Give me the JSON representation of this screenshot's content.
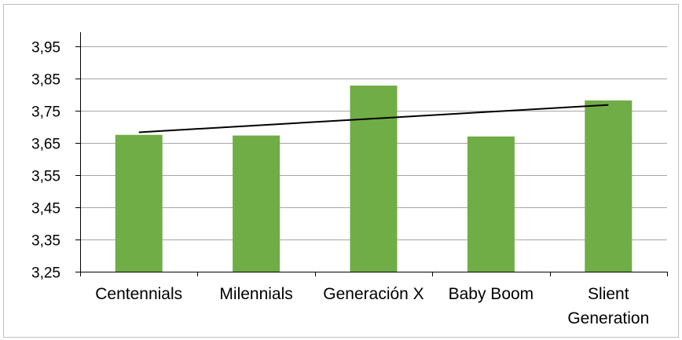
{
  "chart_data": {
    "type": "bar",
    "title": "",
    "xlabel": "",
    "ylabel": "",
    "categories": [
      [
        "Centennials"
      ],
      [
        "Milennials"
      ],
      [
        "Generación X"
      ],
      [
        "Baby Boom"
      ],
      [
        "Slient",
        "Generation"
      ]
    ],
    "values": [
      3.675,
      3.673,
      3.828,
      3.67,
      3.782
    ],
    "trendline": {
      "type": "linear",
      "start": 3.683,
      "end": 3.768
    },
    "ylim": [
      3.25,
      3.95
    ],
    "yticks": [
      "3,25",
      "3,35",
      "3,45",
      "3,55",
      "3,65",
      "3,75",
      "3,85",
      "3,95"
    ],
    "ytick_values": [
      3.25,
      3.35,
      3.45,
      3.55,
      3.65,
      3.75,
      3.85,
      3.95
    ],
    "grid": true,
    "legend": "none",
    "colors": {
      "bar": "#70ad47",
      "trendline": "#000000",
      "grid": "#a6a6a6",
      "axis": "#000000"
    }
  }
}
